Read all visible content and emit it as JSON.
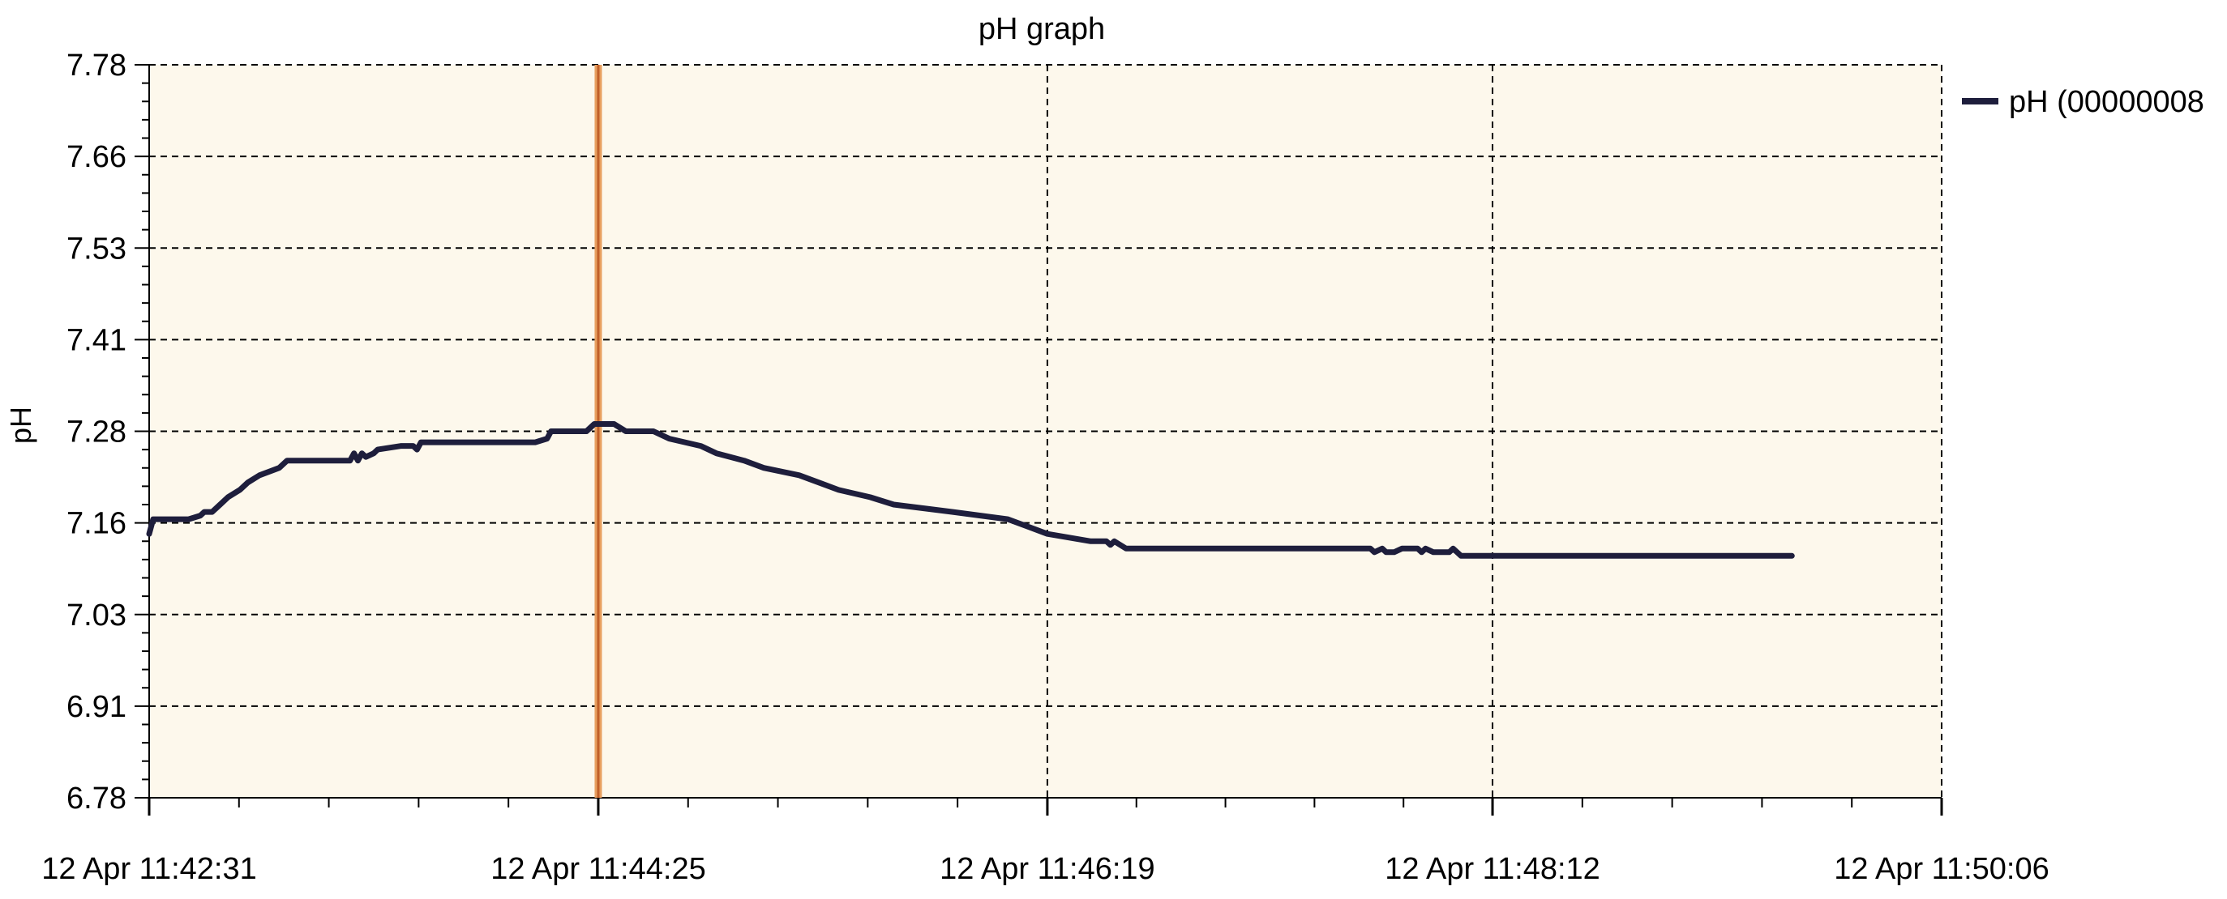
{
  "chart_data": {
    "type": "line",
    "title": "pH graph",
    "xlabel": "",
    "ylabel": "pH",
    "ylim": [
      6.78,
      7.78
    ],
    "y_ticks": [
      "7.78",
      "7.66",
      "7.53",
      "7.41",
      "7.28",
      "7.16",
      "7.03",
      "6.91",
      "6.78"
    ],
    "x_range_seconds": [
      0,
      455
    ],
    "x_ticks": [
      {
        "t": 0,
        "label": "12 Apr 11:42:31"
      },
      {
        "t": 114,
        "label": "12 Apr 11:44:25"
      },
      {
        "t": 228,
        "label": "12 Apr 11:46:19"
      },
      {
        "t": 341,
        "label": "12 Apr 11:48:12"
      },
      {
        "t": 455,
        "label": "12 Apr 11:50:06"
      }
    ],
    "cursor_t": 114,
    "grid": true,
    "legend": {
      "position": "top-right",
      "entries": [
        "pH  (00000008"
      ]
    },
    "colors": {
      "plot_bg": "#fdf8ec",
      "series": "#1e1e3c",
      "cursor": "#e8a060",
      "cursor_core": "#c0602a",
      "grid": "#000000"
    },
    "series": [
      {
        "name": "pH  (00000008",
        "x": [
          0,
          1,
          3,
          10,
          13,
          14,
          16,
          18,
          20,
          23,
          25,
          28,
          33,
          35,
          42,
          51,
          52,
          53,
          54,
          55,
          57,
          58,
          64,
          67,
          68,
          69,
          75,
          98,
          101,
          102,
          111,
          113,
          114,
          116,
          118,
          121,
          123,
          128,
          132,
          136,
          140,
          144,
          151,
          156,
          165,
          175,
          183,
          189,
          204,
          218,
          223,
          228,
          239,
          243,
          244,
          245,
          248,
          310,
          311,
          313,
          314,
          316,
          318,
          322,
          323,
          324,
          326,
          330,
          331,
          332,
          333,
          417
        ],
        "y": [
          7.14,
          7.16,
          7.16,
          7.16,
          7.165,
          7.17,
          7.17,
          7.18,
          7.19,
          7.2,
          7.21,
          7.22,
          7.23,
          7.24,
          7.24,
          7.24,
          7.25,
          7.24,
          7.25,
          7.245,
          7.25,
          7.255,
          7.26,
          7.26,
          7.255,
          7.265,
          7.265,
          7.265,
          7.27,
          7.28,
          7.28,
          7.29,
          7.29,
          7.29,
          7.29,
          7.28,
          7.28,
          7.28,
          7.27,
          7.265,
          7.26,
          7.25,
          7.24,
          7.23,
          7.22,
          7.2,
          7.19,
          7.18,
          7.17,
          7.16,
          7.15,
          7.14,
          7.13,
          7.13,
          7.125,
          7.13,
          7.12,
          7.12,
          7.115,
          7.12,
          7.115,
          7.115,
          7.12,
          7.12,
          7.115,
          7.12,
          7.115,
          7.115,
          7.12,
          7.115,
          7.11,
          7.11
        ]
      }
    ]
  }
}
